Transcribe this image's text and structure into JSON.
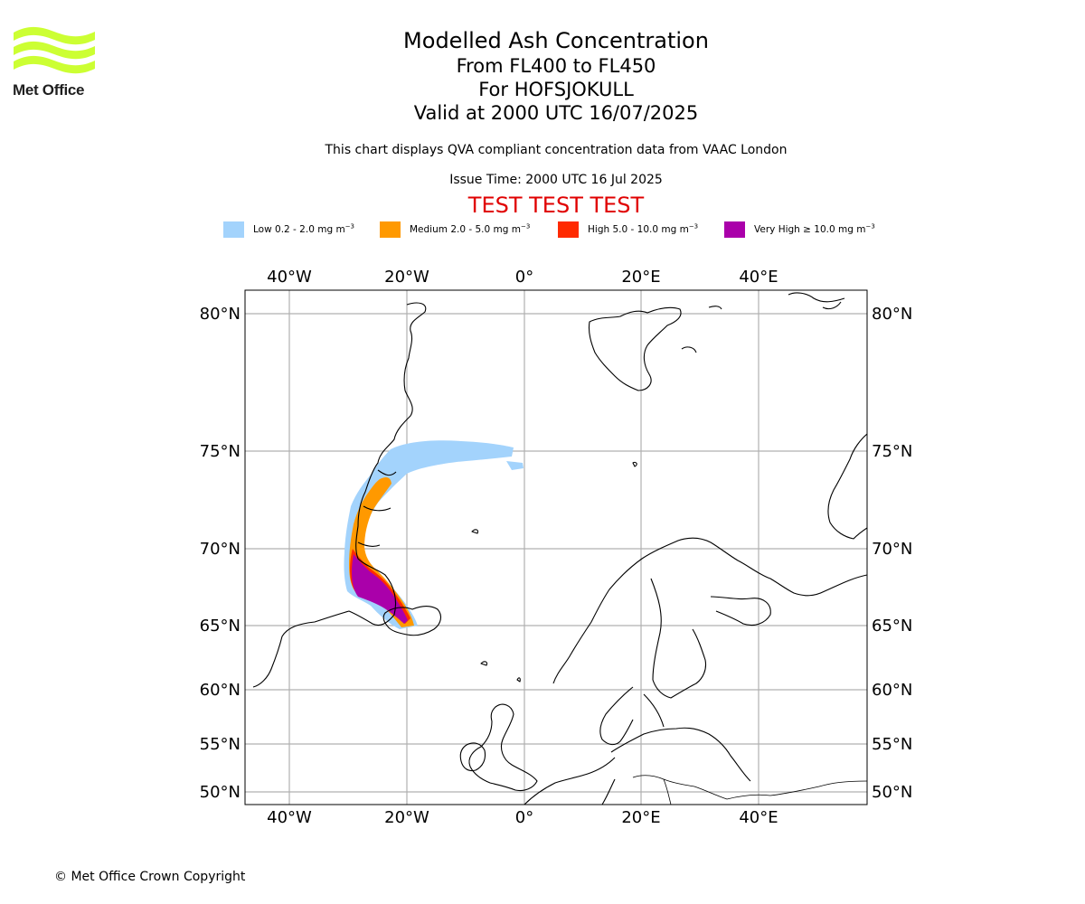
{
  "logo": {
    "text": "Met Office",
    "color": "#ccff33"
  },
  "title": {
    "main": "Modelled Ash Concentration",
    "levels": "From FL400 to FL450",
    "volcano": "For HOFSJOKULL",
    "valid": "Valid at 2000 UTC 16/07/2025"
  },
  "subtitle": "This chart displays QVA compliant concentration data from VAAC London",
  "issue_time": "Issue Time: 2000 UTC 16 Jul 2025",
  "test_banner": "TEST TEST TEST",
  "legend": [
    {
      "label": "Low 0.2 - 2.0 mg m",
      "color": "#a3d3fc"
    },
    {
      "label": "Medium 2.0 - 5.0 mg m",
      "color": "#ff9900"
    },
    {
      "label": "High 5.0 - 10.0 mg m",
      "color": "#ff2a00"
    },
    {
      "label": "Very High ≥ 10.0 mg m",
      "color": "#aa00aa"
    }
  ],
  "legend_unit_exponent": "−3",
  "map": {
    "lon_labels": [
      "40°W",
      "20°W",
      "0°",
      "20°E",
      "40°E"
    ],
    "lat_labels": [
      "80°N",
      "75°N",
      "70°N",
      "65°N",
      "60°N",
      "55°N",
      "50°N"
    ],
    "gridline_color": "#b0b0b0",
    "coastline_color": "#000000"
  },
  "copyright": "© Met Office Crown Copyright"
}
